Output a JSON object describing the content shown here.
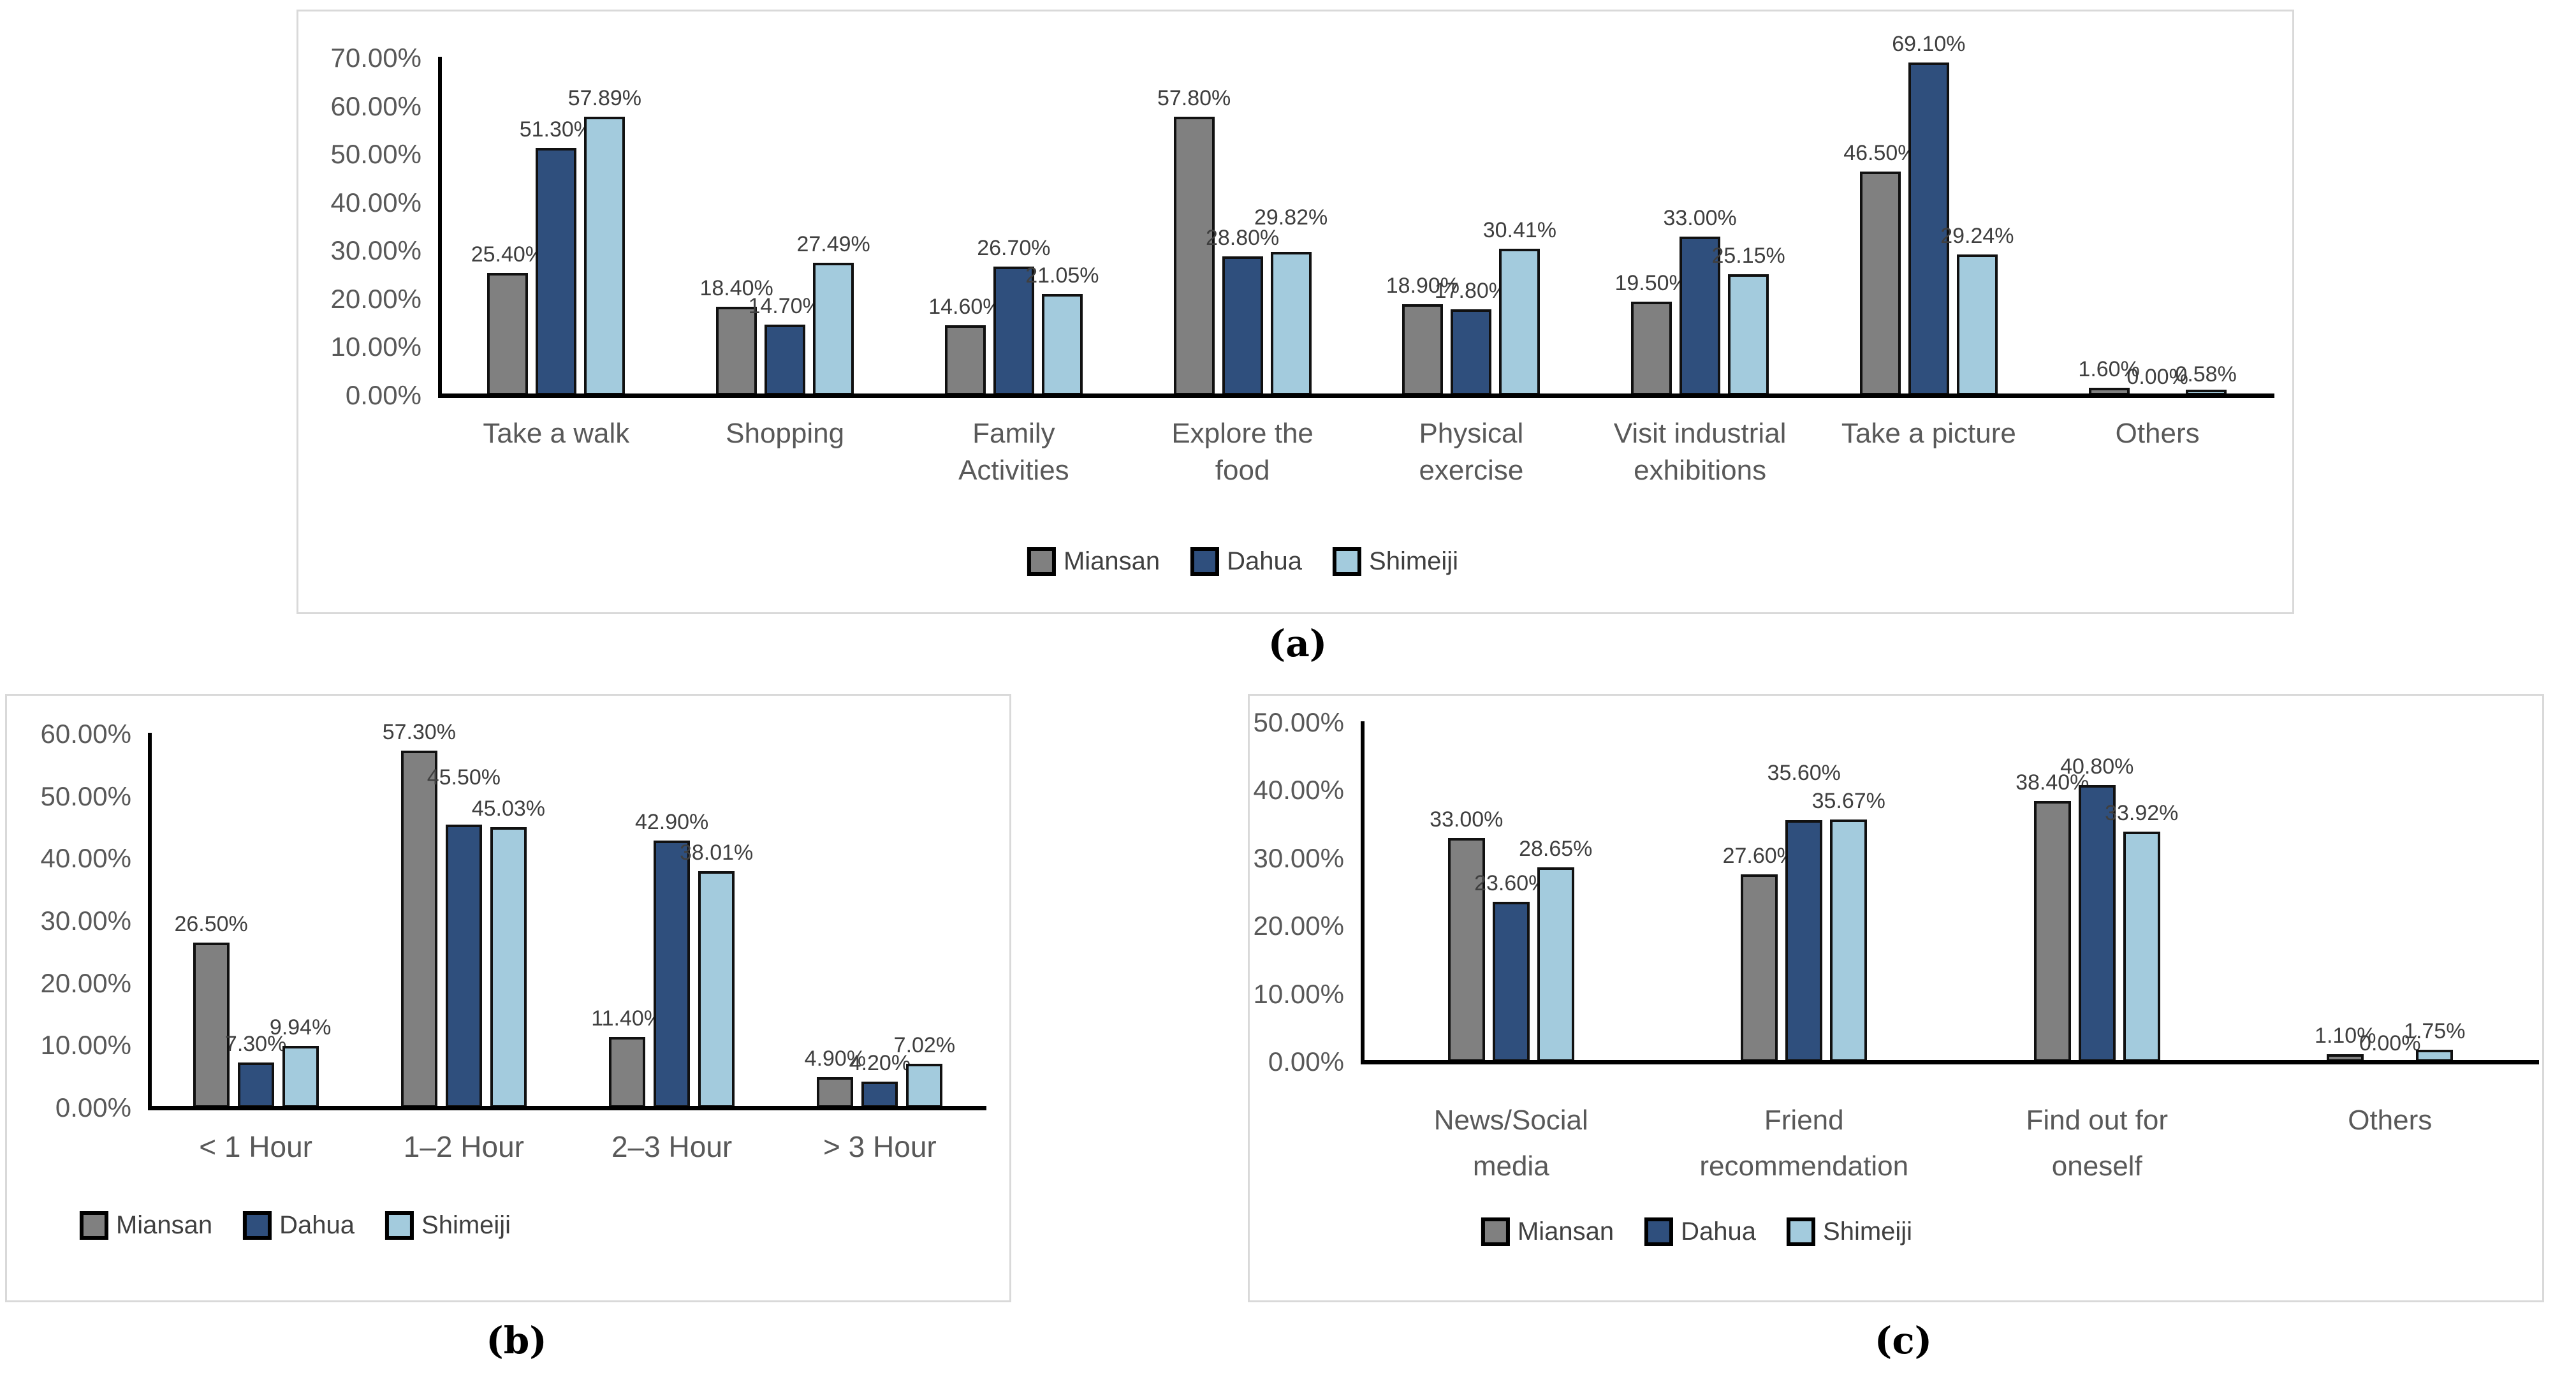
{
  "figure": {
    "captions": {
      "a": "(a)",
      "b": "(b)",
      "c": "(c)"
    },
    "legend_labels": [
      "Miansan",
      "Dahua",
      "Shimeiji"
    ],
    "colors": {
      "miansan": "#808080",
      "dahua": "#2F4F7D",
      "shimeiji": "#A3CBDD",
      "bar_border": "#111111",
      "axis": "#000000",
      "tick_text": "#595959",
      "category_text": "#595959",
      "data_label_text": "#3F3F3F",
      "legend_text": "#404040",
      "panel_border": "#D9D9D9",
      "background": "#FFFFFF"
    }
  },
  "chart_data": [
    {
      "id": "a",
      "type": "bar",
      "title": "",
      "xlabel": "",
      "ylabel": "",
      "ylim": [
        0,
        70
      ],
      "ytick_step": 10,
      "grid": false,
      "legend_position": "bottom",
      "ytick_labels": [
        "0.00%",
        "10.00%",
        "20.00%",
        "30.00%",
        "40.00%",
        "50.00%",
        "60.00%",
        "70.00%"
      ],
      "categories": [
        [
          "Take a walk"
        ],
        [
          "Shopping"
        ],
        [
          "Family",
          "Activities"
        ],
        [
          "Explore the",
          "food"
        ],
        [
          "Physical",
          "exercise"
        ],
        [
          "Visit industrial",
          "exhibitions"
        ],
        [
          "Take a picture"
        ],
        [
          "Others"
        ]
      ],
      "series": [
        {
          "name": "Miansan",
          "values": [
            25.4,
            18.4,
            14.6,
            57.8,
            18.9,
            19.5,
            46.5,
            1.6
          ],
          "value_labels": [
            "25.40%",
            "18.40%",
            "14.60%",
            "57.80%",
            "18.90%",
            "19.50%",
            "46.50%",
            "1.60%"
          ]
        },
        {
          "name": "Dahua",
          "values": [
            51.3,
            14.7,
            26.7,
            28.8,
            17.8,
            33.0,
            69.1,
            0.0
          ],
          "value_labels": [
            "51.30%",
            "14.70%",
            "26.70%",
            "28.80%",
            "17.80%",
            "33.00%",
            "69.10%",
            "0.00%"
          ]
        },
        {
          "name": "Shimeiji",
          "values": [
            57.89,
            27.49,
            21.05,
            29.82,
            30.41,
            25.15,
            29.24,
            0.58
          ],
          "value_labels": [
            "57.89%",
            "27.49%",
            "21.05%",
            "29.82%",
            "30.41%",
            "25.15%",
            "29.24%",
            "0.58%"
          ]
        }
      ],
      "label_dy_overrides": {
        "2.3": -25
      }
    },
    {
      "id": "b",
      "type": "bar",
      "title": "",
      "xlabel": "",
      "ylabel": "",
      "ylim": [
        0,
        60
      ],
      "ytick_step": 10,
      "grid": false,
      "legend_position": "bottom",
      "ytick_labels": [
        "0.00%",
        "10.00%",
        "20.00%",
        "30.00%",
        "40.00%",
        "50.00%",
        "60.00%"
      ],
      "categories": [
        [
          "< 1 Hour"
        ],
        [
          "1–2 Hour"
        ],
        [
          "2–3 Hour"
        ],
        [
          "> 3 Hour"
        ]
      ],
      "series": [
        {
          "name": "Miansan",
          "values": [
            26.5,
            57.3,
            11.4,
            4.9
          ],
          "value_labels": [
            "26.50%",
            "57.30%",
            "11.40%",
            "4.90%"
          ]
        },
        {
          "name": "Dahua",
          "values": [
            7.3,
            45.5,
            42.9,
            4.2
          ],
          "value_labels": [
            "7.30%",
            "45.50%",
            "42.90%",
            "4.20%"
          ]
        },
        {
          "name": "Shimeiji",
          "values": [
            9.94,
            45.03,
            38.01,
            7.02
          ],
          "value_labels": [
            "9.94%",
            "45.03%",
            "38.01%",
            "7.02%"
          ]
        }
      ],
      "label_dy_overrides": {
        "1.1": -45
      }
    },
    {
      "id": "c",
      "type": "bar",
      "title": "",
      "xlabel": "",
      "ylabel": "",
      "ylim": [
        0,
        50
      ],
      "ytick_step": 10,
      "grid": false,
      "legend_position": "bottom",
      "ytick_labels": [
        "0.00%",
        "10.00%",
        "20.00%",
        "30.00%",
        "40.00%",
        "50.00%"
      ],
      "categories": [
        [
          "News/Social",
          "media"
        ],
        [
          "Friend",
          "recommendation"
        ],
        [
          "Find out for",
          "oneself"
        ],
        [
          "Others"
        ]
      ],
      "series": [
        {
          "name": "Miansan",
          "values": [
            33.0,
            27.6,
            38.4,
            1.1
          ],
          "value_labels": [
            "33.00%",
            "27.60%",
            "38.40%",
            "1.10%"
          ]
        },
        {
          "name": "Dahua",
          "values": [
            23.6,
            35.6,
            40.8,
            0.0
          ],
          "value_labels": [
            "23.60%",
            "35.60%",
            "40.80%",
            "0.00%"
          ]
        },
        {
          "name": "Shimeiji",
          "values": [
            28.65,
            35.67,
            33.92,
            1.75
          ],
          "value_labels": [
            "28.65%",
            "35.67%",
            "33.92%",
            "1.75%"
          ]
        }
      ],
      "label_dy_overrides": {
        "1.1": -45
      }
    }
  ]
}
